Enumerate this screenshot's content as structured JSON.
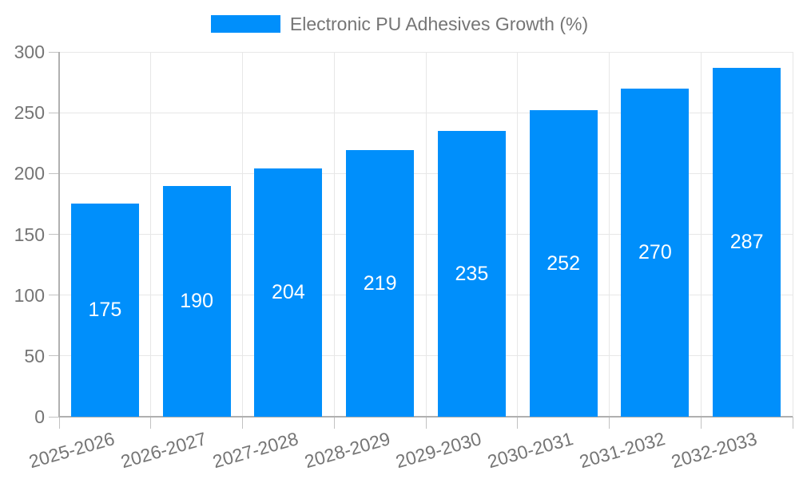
{
  "legend": {
    "label": "Electronic PU Adhesives Growth (%)"
  },
  "chart_data": {
    "type": "bar",
    "title": "Electronic PU Adhesives Growth (%)",
    "categories": [
      "2025-2026",
      "2026-2027",
      "2027-2028",
      "2028-2029",
      "2029-2030",
      "2030-2031",
      "2031-2032",
      "2032-2033"
    ],
    "values": [
      175,
      190,
      204,
      219,
      235,
      252,
      270,
      287
    ],
    "xlabel": "",
    "ylabel": "",
    "ylim": [
      0,
      300
    ],
    "ytick_step": 50,
    "yticks": [
      0,
      50,
      100,
      150,
      200,
      250,
      300
    ],
    "grid": true,
    "legend_position": "top",
    "value_labels_position": "inside-center",
    "x_label_rotation_deg": -16,
    "colors": {
      "bar": "#008FFB",
      "value_label": "#ffffff",
      "axis_text": "#757575",
      "legend_text": "#757575",
      "gridline": "#e7e7e7",
      "axis_line": "#b0b0b0",
      "tick": "#c2c2c2",
      "background": "#ffffff"
    }
  }
}
